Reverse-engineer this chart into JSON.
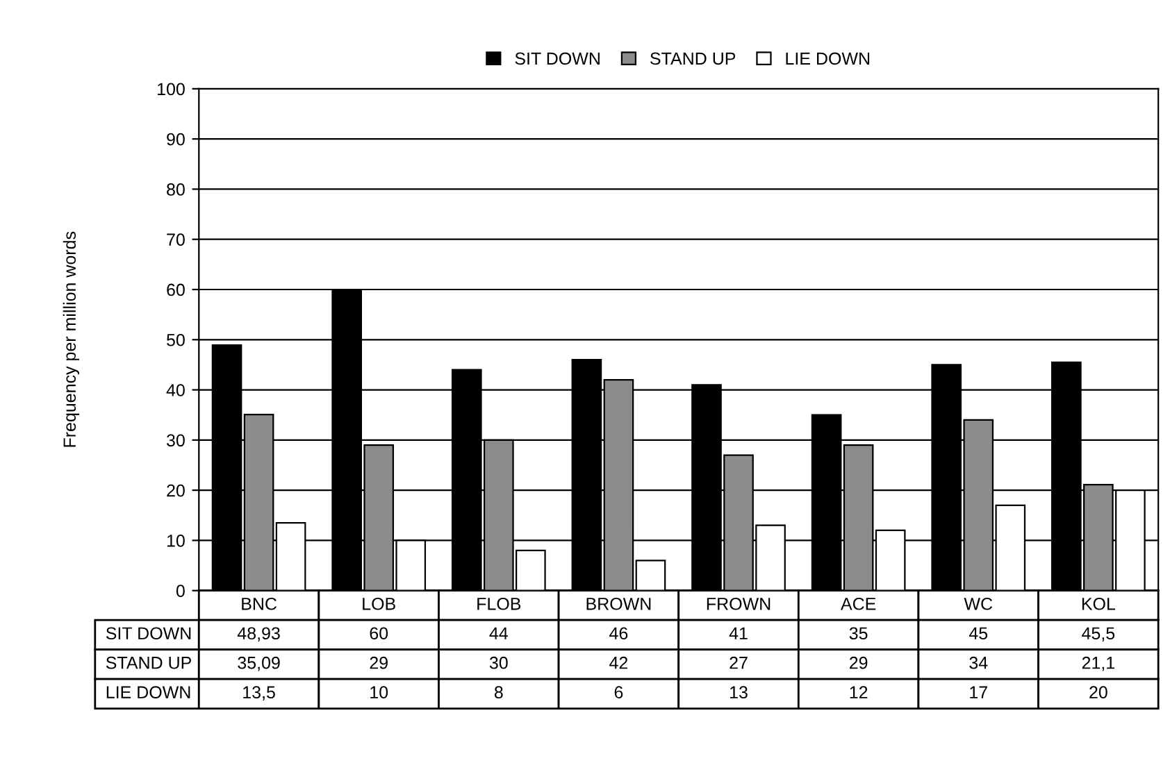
{
  "chart_data": {
    "type": "bar",
    "ylabel": "Frequency per million words",
    "categories": [
      "BNC",
      "LOB",
      "FLOB",
      "BROWN",
      "FROWN",
      "ACE",
      "WC",
      "KOL"
    ],
    "series": [
      {
        "name": "SIT DOWN",
        "color": "#000000",
        "values": [
          48.93,
          60,
          44,
          46,
          41,
          35,
          45,
          45.5
        ],
        "value_labels": [
          "48,93",
          "60",
          "44",
          "46",
          "41",
          "35",
          "45",
          "45,5"
        ]
      },
      {
        "name": "STAND UP",
        "color": "#8c8c8c",
        "values": [
          35.09,
          29,
          30,
          42,
          27,
          29,
          34,
          21.1
        ],
        "value_labels": [
          "35,09",
          "29",
          "30",
          "42",
          "27",
          "29",
          "34",
          "21,1"
        ]
      },
      {
        "name": "LIE DOWN",
        "color": "#ffffff",
        "values": [
          13.5,
          10,
          8,
          6,
          13,
          12,
          17,
          20
        ],
        "value_labels": [
          "13,5",
          "10",
          "8",
          "6",
          "13",
          "12",
          "17",
          "20"
        ]
      }
    ],
    "ylim": [
      0,
      100
    ],
    "yticks": [
      0,
      10,
      20,
      30,
      40,
      50,
      60,
      70,
      80,
      90,
      100
    ],
    "grid": "y",
    "legend": "top"
  }
}
